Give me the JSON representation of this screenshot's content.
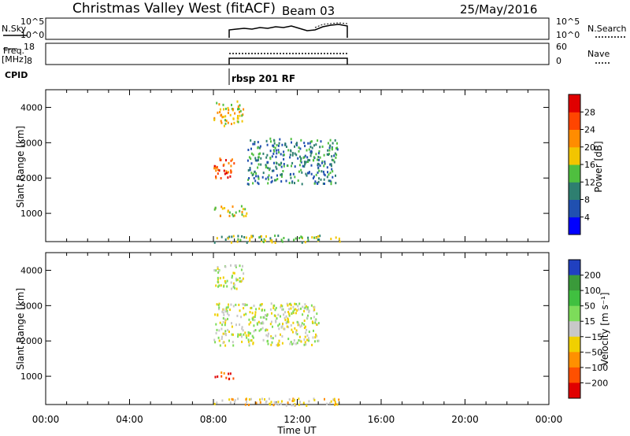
{
  "header": {
    "station": "Christmas Valley West (fitACF)",
    "beam": "Beam 03",
    "date": "25/May/2016"
  },
  "panels": {
    "nsky": {
      "left_label": "N.Sky",
      "left_ticks": [
        "10^5",
        "10^0"
      ],
      "right_ticks": [
        "10^5",
        "10^0"
      ],
      "right_label": "N.Search"
    },
    "freq": {
      "left_label_1": "Freq.",
      "left_label_2": "[MHz]",
      "left_ticks": [
        "18",
        "8"
      ],
      "right_ticks": [
        "60",
        "0"
      ],
      "right_label": "Nave"
    },
    "cpid": {
      "label": "CPID",
      "program": "rbsp 201 RF"
    }
  },
  "chart_data": [
    {
      "type": "heatmap",
      "name": "power",
      "ylabel": "Slant Range [km]",
      "ylim": [
        200,
        4500
      ],
      "yticks": [
        1000,
        2000,
        3000,
        4000
      ],
      "xlim": [
        0,
        24
      ],
      "xticks": [
        "00:00",
        "04:00",
        "08:00",
        "12:00",
        "16:00",
        "20:00",
        "00:00"
      ],
      "xlabel": "Time UT",
      "colorbar": {
        "label": "Power [dB]",
        "ticks": [
          "4",
          "8",
          "12",
          "16",
          "20",
          "24",
          "28"
        ],
        "colors": [
          "#0000ff",
          "#2050b0",
          "#2e7f70",
          "#4fbf3f",
          "#f2c500",
          "#ff8c00",
          "#ff4500",
          "#e00000"
        ]
      },
      "echo_regions": [
        {
          "t": [
            8.0,
            9.4
          ],
          "range": [
            3500,
            4200
          ],
          "level": 4
        },
        {
          "t": [
            9.6,
            13.9
          ],
          "range": [
            1850,
            3150
          ],
          "level": 2
        },
        {
          "t": [
            8.0,
            9.0
          ],
          "range": [
            2000,
            2600
          ],
          "level": 6
        },
        {
          "t": [
            8.0,
            9.6
          ],
          "range": [
            950,
            1250
          ],
          "level": 4
        },
        {
          "t": [
            8.0,
            14.0
          ],
          "range": [
            200,
            400
          ],
          "level": 3
        }
      ]
    },
    {
      "type": "heatmap",
      "name": "velocity",
      "ylabel": "Slant Range [km]",
      "ylim": [
        200,
        4500
      ],
      "yticks": [
        1000,
        2000,
        3000,
        4000
      ],
      "xlim": [
        0,
        24
      ],
      "xticks": [
        "00:00",
        "04:00",
        "08:00",
        "12:00",
        "16:00",
        "20:00",
        "00:00"
      ],
      "xlabel": "Time UT",
      "colorbar": {
        "label": "Velocity [m s⁻¹]",
        "ticks": [
          "200",
          "100",
          "50",
          "15",
          "−15",
          "−50",
          "−100",
          "−200"
        ],
        "colors": [
          "#2040c0",
          "#3a9a3a",
          "#40c040",
          "#7ddc5a",
          "#c8c8c8",
          "#f0d000",
          "#ff9000",
          "#ff5000",
          "#e00000"
        ]
      },
      "echo_regions": [
        {
          "t": [
            8.0,
            9.4
          ],
          "range": [
            3500,
            4200
          ],
          "level": 4
        },
        {
          "t": [
            8.0,
            13.0
          ],
          "range": [
            1900,
            3100
          ],
          "level": 4
        },
        {
          "t": [
            8.0,
            9.0
          ],
          "range": [
            950,
            1150
          ],
          "level": 7
        },
        {
          "t": [
            8.0,
            14.0
          ],
          "range": [
            200,
            400
          ],
          "level": 5
        }
      ]
    }
  ]
}
